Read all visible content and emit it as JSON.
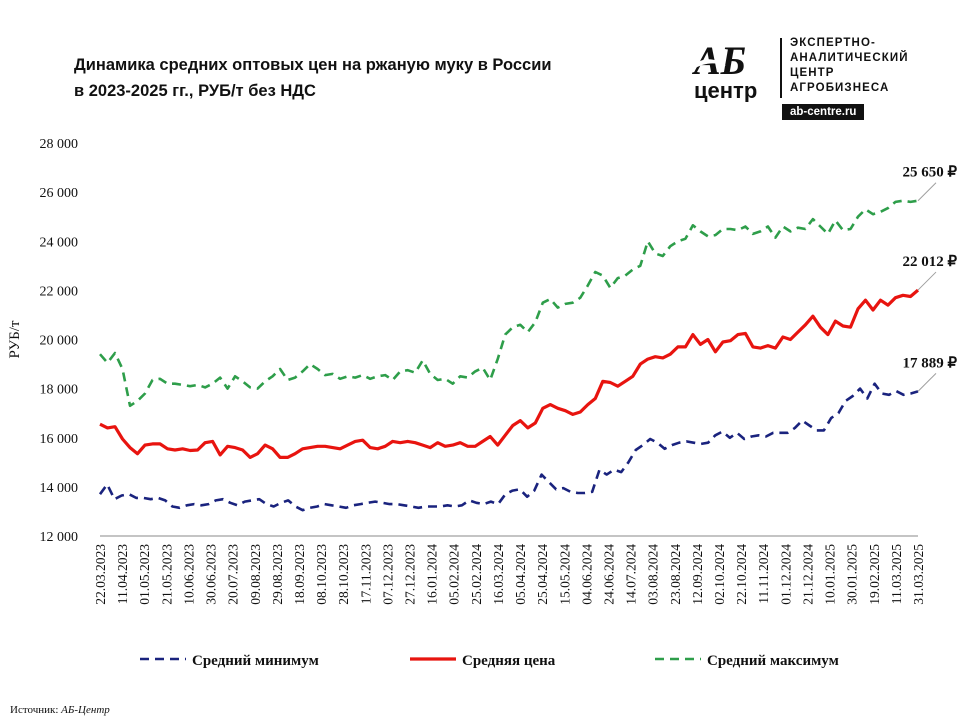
{
  "title": {
    "line1": "Динамика средних оптовых цен на ржаную муку в России",
    "line2": "в 2023-2025 гг., РУБ/т без НДС"
  },
  "logo": {
    "mark_top": "АБ",
    "mark_bottom": "центр",
    "lines": [
      "ЭКСПЕРТНО-",
      "АНАЛИТИЧЕСКИЙ",
      "ЦЕНТР",
      "АГРОБИЗНЕСА"
    ],
    "site": "ab-centre.ru"
  },
  "source": {
    "label": "Источник:",
    "value": "АБ-Центр"
  },
  "chart_data": {
    "type": "line",
    "ylabel": "РУБ/т",
    "ylim": [
      12000,
      28000
    ],
    "yticks": [
      12000,
      14000,
      16000,
      18000,
      20000,
      22000,
      24000,
      26000,
      28000
    ],
    "ytick_labels": [
      "12 000",
      "14 000",
      "16 000",
      "18 000",
      "20 000",
      "22 000",
      "24 000",
      "26 000",
      "28 000"
    ],
    "grid": false,
    "legend_position": "bottom",
    "x_tick_labels": [
      "22.03.2023",
      "11.04.2023",
      "01.05.2023",
      "21.05.2023",
      "10.06.2023",
      "30.06.2023",
      "20.07.2023",
      "09.08.2023",
      "29.08.2023",
      "18.09.2023",
      "08.10.2023",
      "28.10.2023",
      "17.11.2023",
      "07.12.2023",
      "27.12.2023",
      "16.01.2024",
      "05.02.2024",
      "25.02.2024",
      "16.03.2024",
      "05.04.2024",
      "25.04.2024",
      "15.05.2024",
      "04.06.2024",
      "24.06.2024",
      "14.07.2024",
      "03.08.2024",
      "23.08.2024",
      "12.09.2024",
      "02.10.2024",
      "22.10.2024",
      "11.11.2024",
      "01.12.2024",
      "21.12.2024",
      "10.01.2025",
      "30.01.2025",
      "19.02.2025",
      "11.03.2025",
      "31.03.2025"
    ],
    "x_start": "22.03.2023",
    "x_end": "31.03.2025",
    "series": [
      {
        "name": "Средний минимум",
        "color": "#1a237e",
        "style": "dashed",
        "end_label": "17 889 ₽",
        "values": [
          13700,
          14100,
          13500,
          13650,
          13700,
          13550,
          13550,
          13500,
          13550,
          13450,
          13200,
          13150,
          13250,
          13300,
          13250,
          13300,
          13450,
          13500,
          13350,
          13250,
          13400,
          13450,
          13500,
          13300,
          13200,
          13350,
          13450,
          13200,
          13050,
          13150,
          13200,
          13300,
          13250,
          13200,
          13150,
          13250,
          13300,
          13350,
          13400,
          13350,
          13300,
          13300,
          13250,
          13200,
          13150,
          13200,
          13200,
          13200,
          13250,
          13200,
          13250,
          13450,
          13350,
          13300,
          13400,
          13300,
          13700,
          13850,
          13900,
          13600,
          13850,
          14500,
          14200,
          13900,
          13950,
          13800,
          13750,
          13750,
          13800,
          14700,
          14500,
          14700,
          14600,
          15000,
          15500,
          15700,
          15950,
          15800,
          15550,
          15700,
          15800,
          15850,
          15800,
          15750,
          15800,
          16100,
          16250,
          16000,
          16200,
          15950,
          16050,
          16100,
          16050,
          16200,
          16200,
          16200,
          16400,
          16700,
          16500,
          16300,
          16300,
          16800,
          17000,
          17500,
          17700,
          18000,
          17600,
          18200,
          17800,
          17750,
          17900,
          17750,
          17800,
          17889
        ]
      },
      {
        "name": "Средняя цена",
        "color": "#e8140f",
        "style": "solid",
        "end_label": "22 012 ₽",
        "values": [
          16550,
          16400,
          16450,
          15950,
          15600,
          15350,
          15700,
          15750,
          15750,
          15550,
          15500,
          15550,
          15480,
          15500,
          15800,
          15850,
          15300,
          15650,
          15600,
          15500,
          15200,
          15350,
          15700,
          15550,
          15200,
          15200,
          15350,
          15550,
          15600,
          15650,
          15650,
          15600,
          15550,
          15700,
          15850,
          15900,
          15600,
          15550,
          15650,
          15850,
          15800,
          15850,
          15800,
          15700,
          15600,
          15800,
          15650,
          15700,
          15800,
          15650,
          15650,
          15850,
          16050,
          15700,
          16100,
          16500,
          16700,
          16400,
          16600,
          17200,
          17350,
          17200,
          17100,
          16950,
          17050,
          17350,
          17600,
          18300,
          18250,
          18100,
          18300,
          18500,
          19000,
          19200,
          19300,
          19250,
          19400,
          19700,
          19700,
          20200,
          19800,
          20000,
          19500,
          19900,
          19950,
          20200,
          20250,
          19700,
          19650,
          19750,
          19650,
          20100,
          20000,
          20300,
          20600,
          20950,
          20500,
          20200,
          20750,
          20550,
          20500,
          21250,
          21600,
          21200,
          21600,
          21400,
          21700,
          21800,
          21750,
          22012
        ]
      },
      {
        "name": "Средний максимум",
        "color": "#2e9e4a",
        "style": "dashed",
        "end_label": "25 650 ₽",
        "values": [
          19400,
          19050,
          19450,
          18800,
          17300,
          17500,
          17800,
          18350,
          18400,
          18200,
          18200,
          18150,
          18100,
          18150,
          18050,
          18200,
          18450,
          18000,
          18500,
          18300,
          18050,
          18000,
          18300,
          18500,
          18800,
          18350,
          18450,
          18700,
          19000,
          18800,
          18550,
          18600,
          18400,
          18500,
          18450,
          18550,
          18400,
          18500,
          18550,
          18350,
          18700,
          18750,
          18650,
          19150,
          18600,
          18350,
          18400,
          18200,
          18500,
          18450,
          18700,
          18850,
          18350,
          19200,
          20200,
          20500,
          20600,
          20300,
          20700,
          21500,
          21650,
          21300,
          21450,
          21500,
          21700,
          22200,
          22750,
          22600,
          22100,
          22500,
          22600,
          22850,
          23000,
          24000,
          23500,
          23400,
          23800,
          24000,
          24100,
          24650,
          24400,
          24200,
          24250,
          24500,
          24500,
          24450,
          24600,
          24300,
          24400,
          24600,
          24150,
          24600,
          24400,
          24550,
          24500,
          24900,
          24600,
          24300,
          24850,
          24450,
          24500,
          25000,
          25300,
          25100,
          25200,
          25350,
          25600,
          25650,
          25600,
          25650
        ]
      }
    ]
  }
}
